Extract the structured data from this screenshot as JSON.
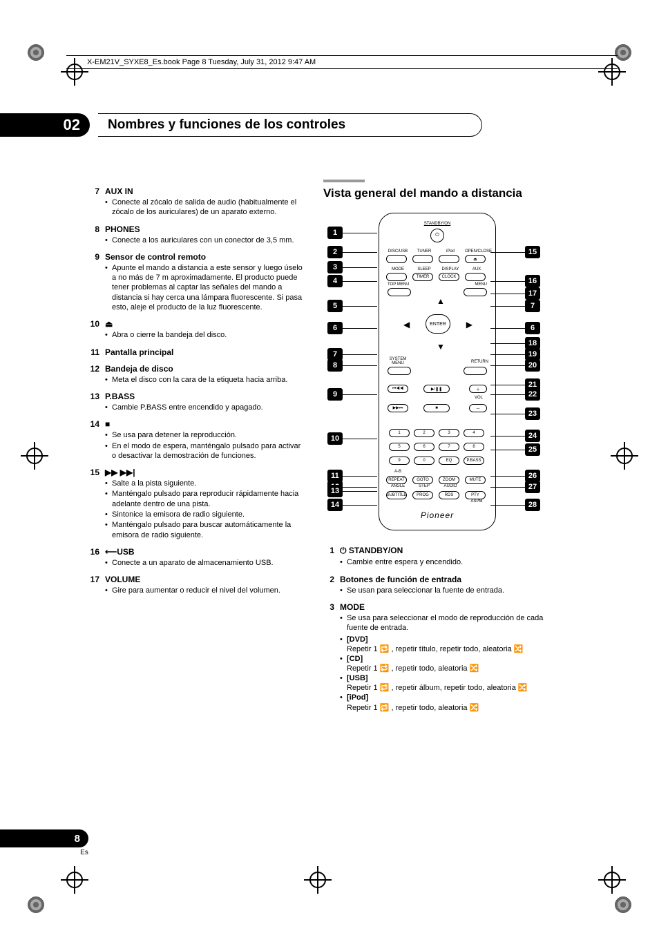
{
  "header": {
    "text": "X-EM21V_SYXE8_Es.book  Page 8  Tuesday, July 31, 2012  9:47 AM"
  },
  "chapter": {
    "number": "02",
    "title": "Nombres y funciones de los controles"
  },
  "left_items": [
    {
      "n": "7",
      "label": "AUX IN",
      "bullets": [
        "Conecte al zócalo de salida de audio (habitualmente el zócalo de los auriculares) de un aparato externo."
      ]
    },
    {
      "n": "8",
      "label": "PHONES",
      "bullets": [
        "Conecte a los auriculares con un conector de 3,5 mm."
      ]
    },
    {
      "n": "9",
      "label": "Sensor de control remoto",
      "bullets": [
        "Apunte el mando a distancia a este sensor y luego úselo a no más de 7 m aproximadamente. El producto puede tener problemas al captar las señales del mando a distancia si hay cerca una lámpara fluorescente. Si pasa esto, aleje el producto de la luz fluorescente."
      ]
    },
    {
      "n": "10",
      "label": "⏏",
      "bullets": [
        "Abra o cierre la bandeja del disco."
      ]
    },
    {
      "n": "11",
      "label": "Pantalla principal",
      "bullets": []
    },
    {
      "n": "12",
      "label": "Bandeja de disco",
      "bullets": [
        "Meta el disco con la cara de la etiqueta hacia arriba."
      ]
    },
    {
      "n": "13",
      "label": "P.BASS",
      "bullets": [
        "Cambie P.BASS entre encendido y apagado."
      ]
    },
    {
      "n": "14",
      "label": "■",
      "bullets": [
        "Se usa para detener la reproducción.",
        "En el modo de espera, manténgalo pulsado para activar o desactivar la demostración de funciones."
      ]
    },
    {
      "n": "15",
      "label": "▶▶ ▶▶|",
      "bullets": [
        "Salte a la pista siguiente.",
        "Manténgalo pulsado para reproducir rápidamente hacia adelante dentro de una pista.",
        "Sintonice la emisora de radio siguiente.",
        "Manténgalo pulsado para buscar automáticamente la emisora de radio siguiente."
      ]
    },
    {
      "n": "16",
      "label": "⟵USB",
      "label_icon": true,
      "bullets": [
        "Conecte a un aparato de almacenamiento USB."
      ]
    },
    {
      "n": "17",
      "label": "VOLUME",
      "bullets": [
        "Gire para aumentar o reducir el nivel del volumen."
      ]
    }
  ],
  "right_section": {
    "title": "Vista general del mando a distancia"
  },
  "remote": {
    "standby_label": "STANDBY/ON",
    "row1": [
      "DISC/USB",
      "TUNER",
      "iPod",
      "OPEN/CLOSE"
    ],
    "row2": [
      "MODE",
      "SLEEP",
      "DISPLAY",
      "AUX"
    ],
    "row2b": [
      "",
      "TIMER",
      "CLOCK",
      ""
    ],
    "top_menu": "TOP MENU",
    "menu": "MENU",
    "enter": "ENTER",
    "system_menu": "SYSTEM MENU",
    "return": "RETURN",
    "vol": "VOL",
    "numbers": [
      "1",
      "2",
      "3",
      "4",
      "5",
      "6",
      "7",
      "8",
      "9",
      "0",
      "EQ",
      "P.BASS"
    ],
    "rowA": [
      "A-B REPEAT",
      "GOTO",
      "ZOOM",
      "MUTE"
    ],
    "rowB": [
      "ANGLE",
      "STEP",
      "AUDIO",
      ""
    ],
    "rowC": [
      "SUBTITLE",
      "PROG",
      "RDS",
      "PTY"
    ],
    "rowD": [
      "",
      "",
      "",
      "ASPM"
    ],
    "brand": "Pioneer",
    "callouts_left": [
      "1",
      "2",
      "3",
      "4",
      "5",
      "6",
      "7",
      "8",
      "9",
      "10",
      "11",
      "12",
      "13",
      "14"
    ],
    "callouts_right": [
      "15",
      "16",
      "17",
      "7",
      "6",
      "18",
      "19",
      "20",
      "21",
      "22",
      "23",
      "24",
      "25",
      "26",
      "27",
      "28"
    ]
  },
  "right_items": [
    {
      "n": "1",
      "label": "⏻ STANDBY/ON",
      "bullets": [
        "Cambie entre espera y encendido."
      ]
    },
    {
      "n": "2",
      "label": "Botones de función de entrada",
      "bullets": [
        "Se usan para seleccionar la fuente de entrada."
      ]
    },
    {
      "n": "3",
      "label": "MODE",
      "bullets": [
        "Se usa para seleccionar el modo de reproducción de cada fuente de entrada."
      ],
      "sub": [
        {
          "k": "[DVD]",
          "t": "Repetir 1 🔁 , repetir título, repetir todo, aleatoria 🔀"
        },
        {
          "k": "[CD]",
          "t": "Repetir 1 🔁 , repetir todo, aleatoria 🔀"
        },
        {
          "k": "[USB]",
          "t": "Repetir 1 🔁 , repetir álbum, repetir todo, aleatoria 🔀"
        },
        {
          "k": "[iPod]",
          "t": "Repetir 1 🔁 , repetir todo, aleatoria 🔀"
        }
      ]
    }
  ],
  "page": {
    "num": "8",
    "lang": "Es"
  },
  "colors": {
    "text": "#000000",
    "bg": "#ffffff",
    "rule": "#999999"
  }
}
